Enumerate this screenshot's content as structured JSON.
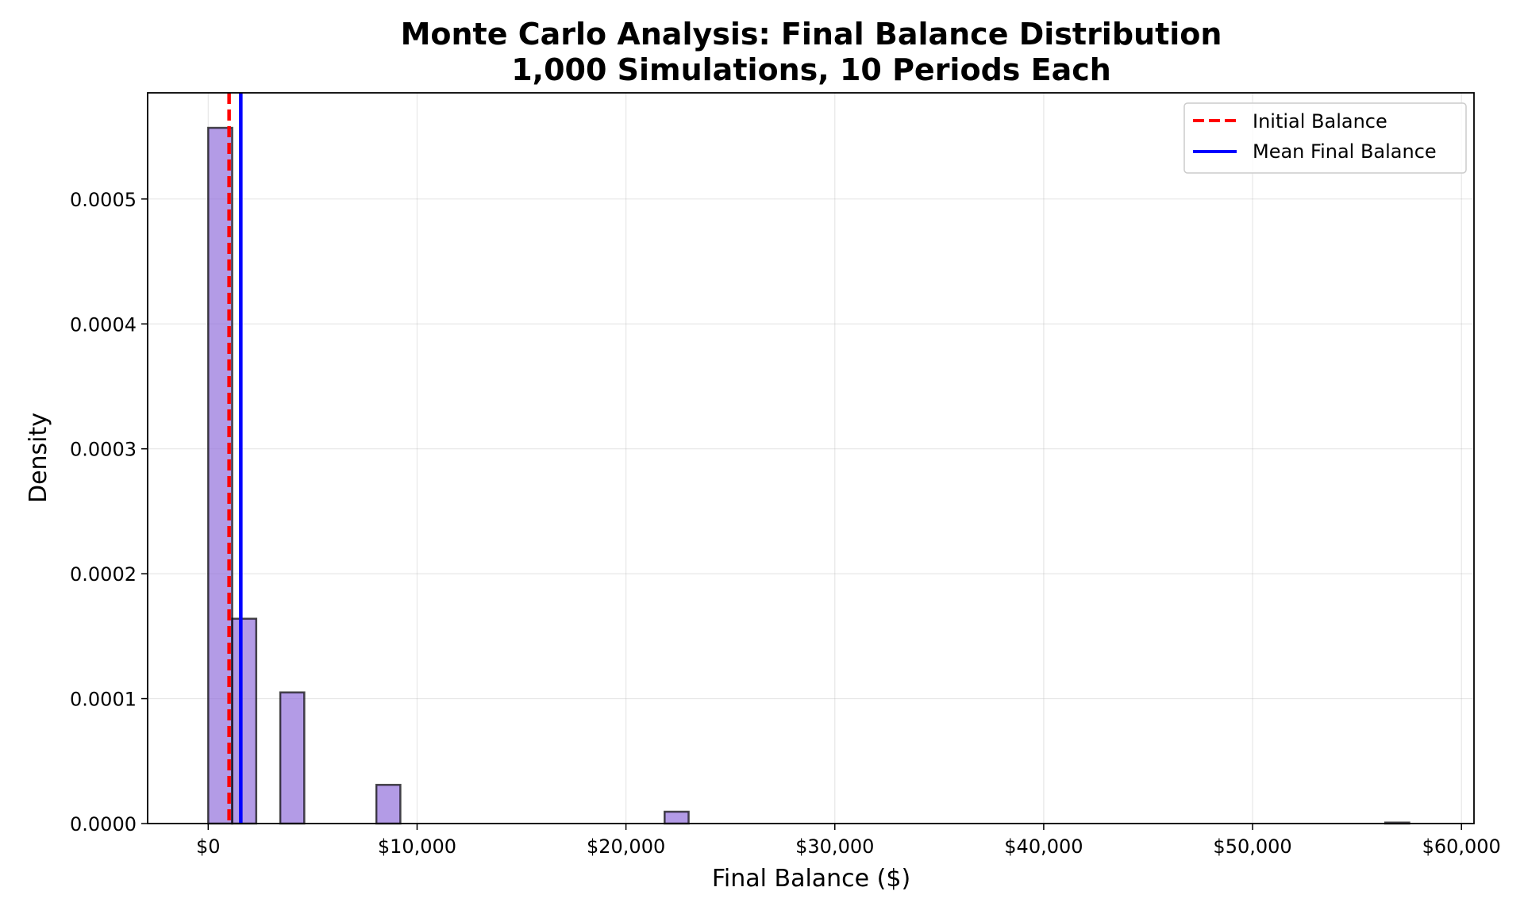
{
  "chart_data": {
    "type": "bar",
    "title": "Monte Carlo Analysis: Final Balance Distribution",
    "subtitle": "1,000 Simulations, 10 Periods Each",
    "xlabel": "Final Balance ($)",
    "ylabel": "Density",
    "xlim": [
      -2900,
      60600
    ],
    "ylim": [
      0,
      0.000585
    ],
    "x_ticks": [
      0,
      10000,
      20000,
      30000,
      40000,
      50000,
      60000
    ],
    "x_tick_labels": [
      "$0",
      "$10,000",
      "$20,000",
      "$30,000",
      "$40,000",
      "$50,000",
      "$60,000"
    ],
    "y_ticks": [
      0,
      0.0001,
      0.0002,
      0.0003,
      0.0004,
      0.0005
    ],
    "y_tick_labels": [
      "0.0000",
      "0.0001",
      "0.0002",
      "0.0003",
      "0.0004",
      "0.0005"
    ],
    "grid": true,
    "bin_width": 1150,
    "bins": [
      {
        "x": 0,
        "density": 0.000557
      },
      {
        "x": 1150,
        "density": 0.000164
      },
      {
        "x": 3450,
        "density": 0.000105
      },
      {
        "x": 8050,
        "density": 3.1e-05
      },
      {
        "x": 21850,
        "density": 9.5e-06
      },
      {
        "x": 56350,
        "density": 8e-07
      }
    ],
    "vlines": [
      {
        "name": "Initial Balance",
        "x": 1000,
        "color": "#ff0000",
        "style": "dashed"
      },
      {
        "name": "Mean Final Balance",
        "x": 1560,
        "color": "#0000ff",
        "style": "solid"
      }
    ],
    "bar_color": "#9370db",
    "legend_position": "top-right"
  }
}
